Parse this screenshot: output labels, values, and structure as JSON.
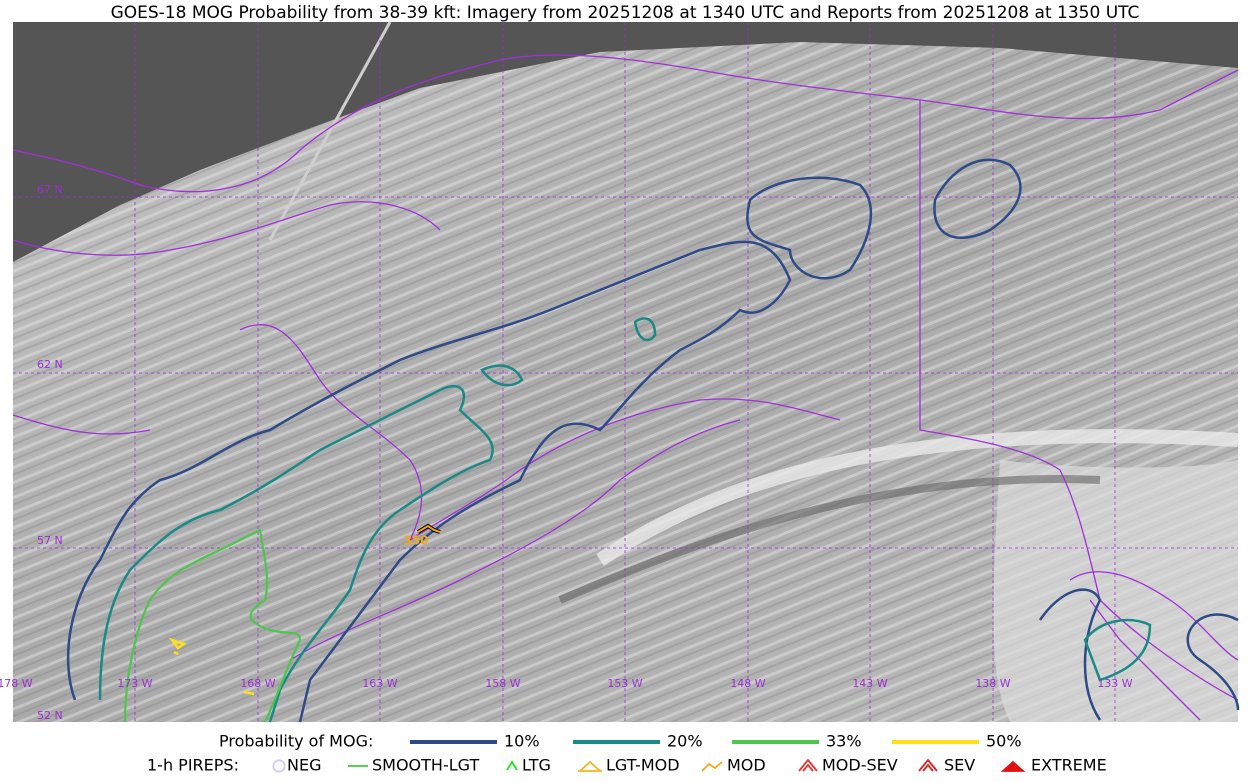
{
  "title": "GOES-18 MOG Probability from 38-39 kft: Imagery from 20251208 at 1340 UTC and Reports from 20251208 at 1350 UTC",
  "map": {
    "lat_labels": [
      "67 N",
      "62 N",
      "57 N",
      "52 N"
    ],
    "lon_labels": [
      "178 W",
      "173 W",
      "168 W",
      "163 W",
      "158 W",
      "153 W",
      "148 W",
      "143 W",
      "138 W",
      "133 W"
    ],
    "report_label": "350"
  },
  "legend": {
    "mog": {
      "label": "Probability of MOG:",
      "items": [
        {
          "label": "10%",
          "color": "#2e4a87"
        },
        {
          "label": "20%",
          "color": "#1b8a86"
        },
        {
          "label": "33%",
          "color": "#4cc64c"
        },
        {
          "label": "50%",
          "color": "#ffe11a"
        }
      ]
    },
    "pireps": {
      "label": "1-h PIREPS:",
      "items": [
        {
          "label": "NEG",
          "color": "#b8b8f0"
        },
        {
          "label": "SMOOTH-LGT",
          "color": "#3ccc3c"
        },
        {
          "label": "LTG",
          "color": "#1ee01e"
        },
        {
          "label": "LGT-MOD",
          "color": "#f2b51c"
        },
        {
          "label": "MOD",
          "color": "#f2a81c"
        },
        {
          "label": "MOD-SEV",
          "color": "#f03030"
        },
        {
          "label": "SEV",
          "color": "#e02020"
        },
        {
          "label": "EXTREME",
          "color": "#e01010"
        }
      ]
    }
  }
}
